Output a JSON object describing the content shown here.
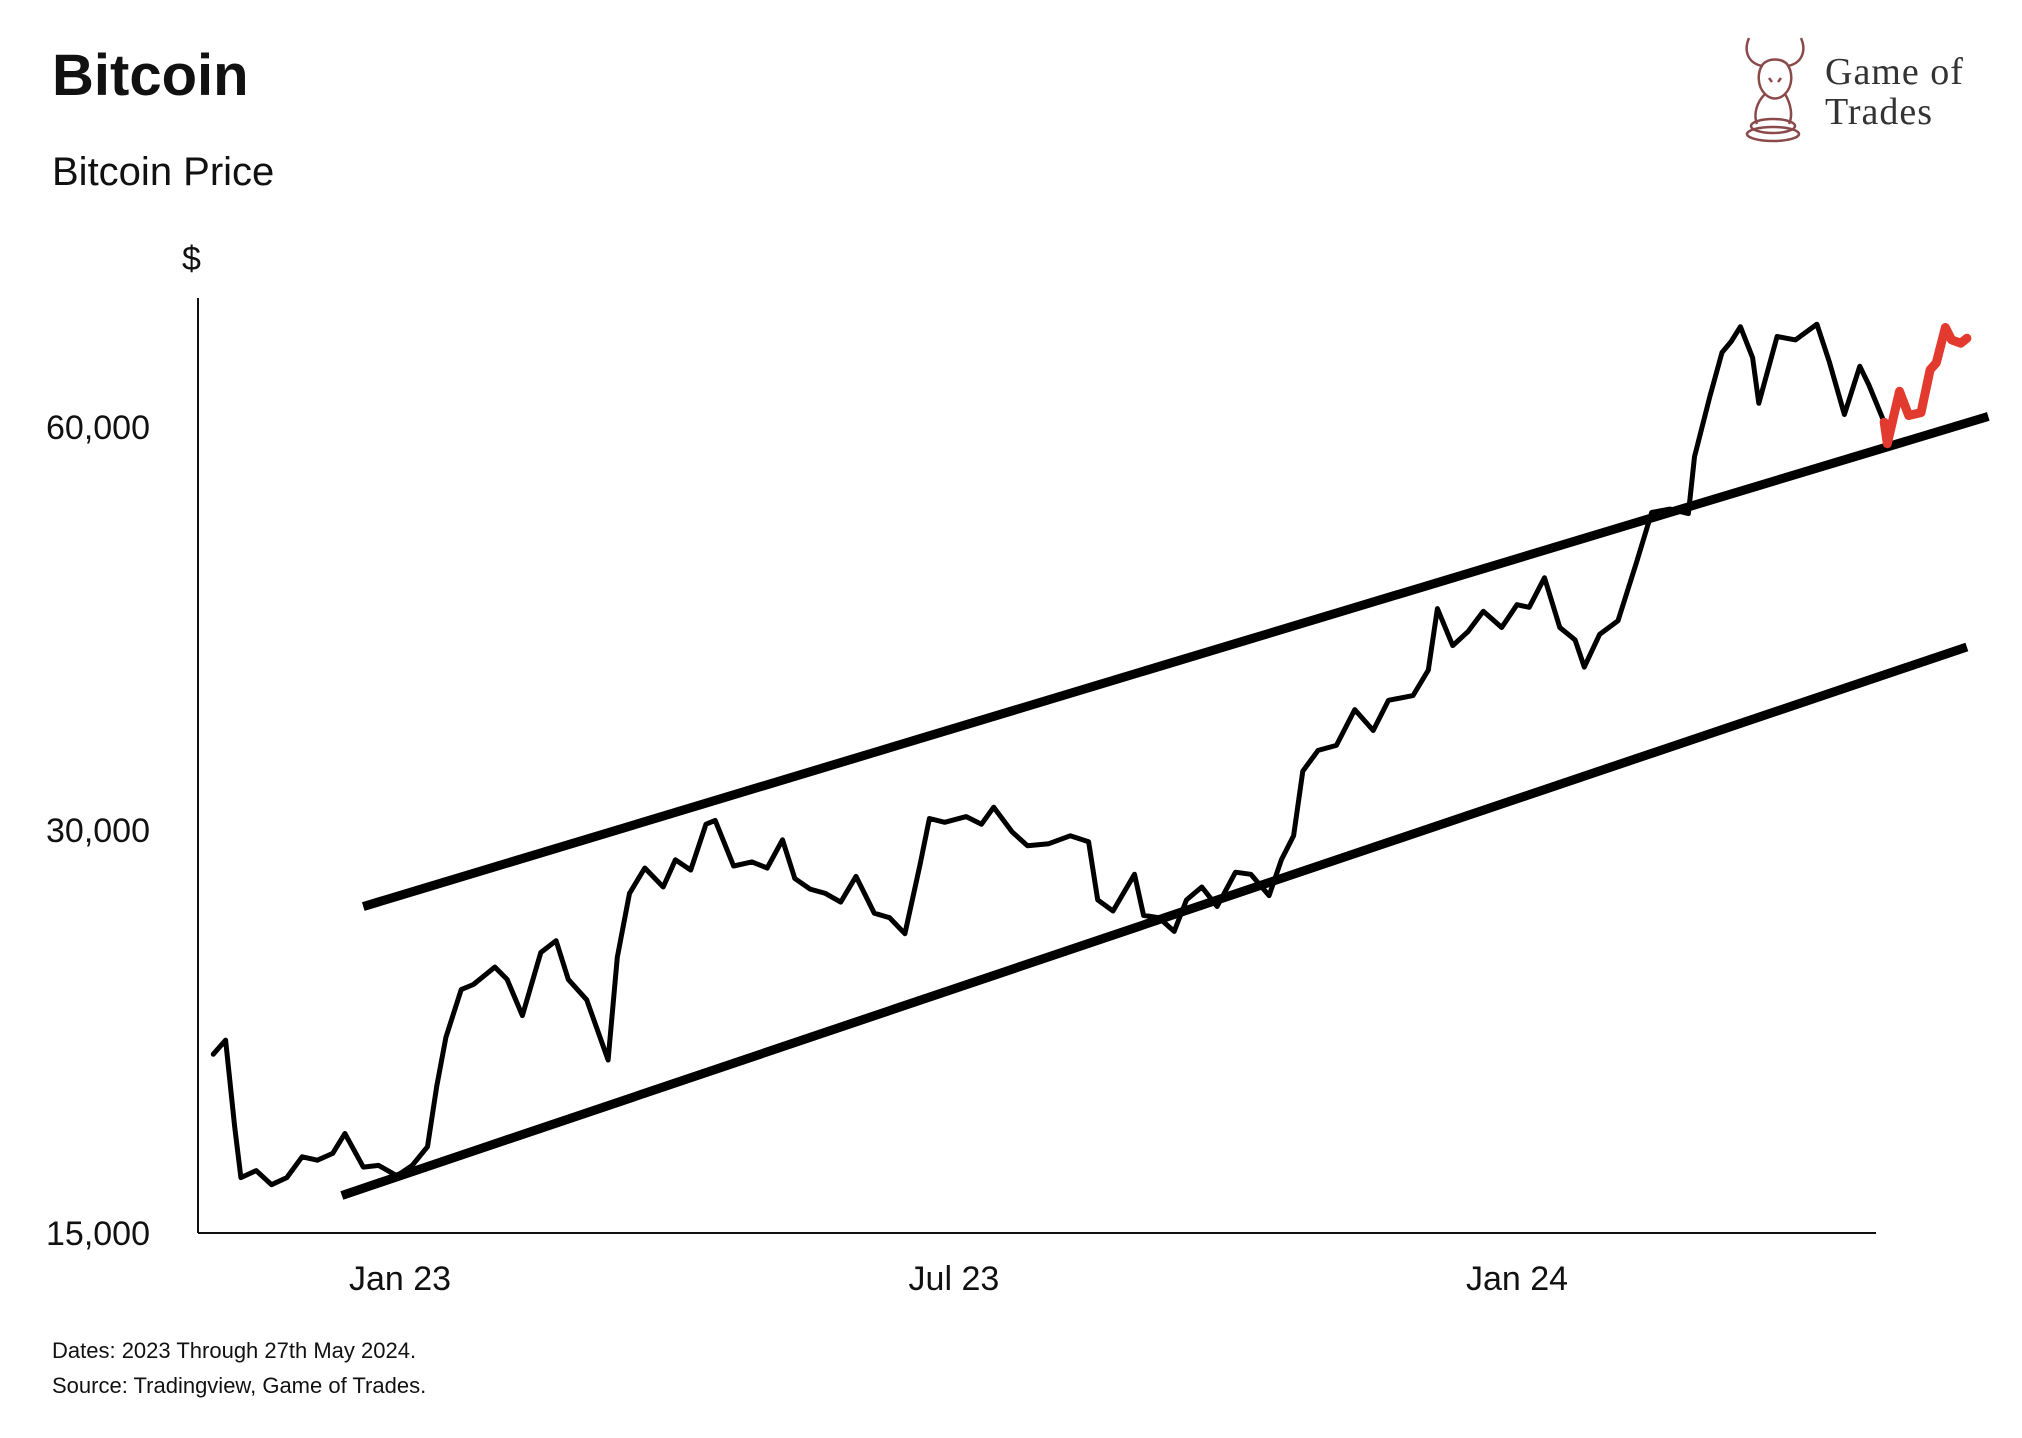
{
  "header": {
    "title": "Bitcoin",
    "subtitle": "Bitcoin Price"
  },
  "logo": {
    "line1": "Game of",
    "line2": "Trades",
    "icon": "bull-knight-icon",
    "color": "#8b4a4a"
  },
  "footer": {
    "dates": "Dates: 2023 Through 27th May 2024.",
    "source": "Source: Tradingview, Game of Trades."
  },
  "chart_data": {
    "type": "line",
    "ylabel": "$",
    "yticks": [
      15000,
      30000,
      60000
    ],
    "ytick_labels": [
      "15,000",
      "30,000",
      "60,000"
    ],
    "ylim": [
      15000,
      72000
    ],
    "y_scale": "log",
    "xlim": [
      "2022-11-01",
      "2024-05-27"
    ],
    "xticks": [
      "2023-01-01",
      "2023-07-01",
      "2024-01-01"
    ],
    "xtick_labels": [
      "Jan 23",
      "Jul 23",
      "Jan 24"
    ],
    "grid": false,
    "colors": {
      "price": "#000000",
      "recent": "#e23a2e",
      "channel": "#000000"
    },
    "series": [
      {
        "color": "#000000",
        "points": [
          [
            "2022-11-01",
            20400
          ],
          [
            "2022-11-05",
            20900
          ],
          [
            "2022-11-08",
            18000
          ],
          [
            "2022-11-10",
            16500
          ],
          [
            "2022-11-15",
            16700
          ],
          [
            "2022-11-20",
            16300
          ],
          [
            "2022-11-25",
            16500
          ],
          [
            "2022-11-30",
            17100
          ],
          [
            "2022-12-05",
            17000
          ],
          [
            "2022-12-10",
            17200
          ],
          [
            "2022-12-14",
            17800
          ],
          [
            "2022-12-20",
            16800
          ],
          [
            "2022-12-25",
            16850
          ],
          [
            "2022-12-31",
            16550
          ],
          [
            "2023-01-05",
            16850
          ],
          [
            "2023-01-10",
            17400
          ],
          [
            "2023-01-13",
            19300
          ],
          [
            "2023-01-16",
            21000
          ],
          [
            "2023-01-21",
            22800
          ],
          [
            "2023-01-25",
            23000
          ],
          [
            "2023-02-01",
            23700
          ],
          [
            "2023-02-05",
            23200
          ],
          [
            "2023-02-10",
            21800
          ],
          [
            "2023-02-16",
            24300
          ],
          [
            "2023-02-21",
            24800
          ],
          [
            "2023-02-25",
            23200
          ],
          [
            "2023-03-03",
            22400
          ],
          [
            "2023-03-10",
            20200
          ],
          [
            "2023-03-13",
            24100
          ],
          [
            "2023-03-17",
            26900
          ],
          [
            "2023-03-22",
            28100
          ],
          [
            "2023-03-28",
            27200
          ],
          [
            "2023-04-01",
            28500
          ],
          [
            "2023-04-06",
            28000
          ],
          [
            "2023-04-11",
            30300
          ],
          [
            "2023-04-14",
            30500
          ],
          [
            "2023-04-20",
            28200
          ],
          [
            "2023-04-26",
            28400
          ],
          [
            "2023-05-01",
            28100
          ],
          [
            "2023-05-06",
            29500
          ],
          [
            "2023-05-10",
            27600
          ],
          [
            "2023-05-15",
            27100
          ],
          [
            "2023-05-20",
            26900
          ],
          [
            "2023-05-25",
            26500
          ],
          [
            "2023-05-30",
            27700
          ],
          [
            "2023-06-05",
            26000
          ],
          [
            "2023-06-10",
            25800
          ],
          [
            "2023-06-15",
            25100
          ],
          [
            "2023-06-20",
            28300
          ],
          [
            "2023-06-23",
            30600
          ],
          [
            "2023-06-28",
            30400
          ],
          [
            "2023-07-05",
            30700
          ],
          [
            "2023-07-10",
            30300
          ],
          [
            "2023-07-14",
            31200
          ],
          [
            "2023-07-20",
            29900
          ],
          [
            "2023-07-25",
            29200
          ],
          [
            "2023-08-01",
            29300
          ],
          [
            "2023-08-08",
            29700
          ],
          [
            "2023-08-14",
            29400
          ],
          [
            "2023-08-17",
            26600
          ],
          [
            "2023-08-22",
            26100
          ],
          [
            "2023-08-29",
            27800
          ],
          [
            "2023-09-01",
            25900
          ],
          [
            "2023-09-06",
            25800
          ],
          [
            "2023-09-11",
            25200
          ],
          [
            "2023-09-15",
            26600
          ],
          [
            "2023-09-20",
            27200
          ],
          [
            "2023-09-25",
            26300
          ],
          [
            "2023-10-01",
            27900
          ],
          [
            "2023-10-06",
            27800
          ],
          [
            "2023-10-12",
            26800
          ],
          [
            "2023-10-16",
            28500
          ],
          [
            "2023-10-20",
            29700
          ],
          [
            "2023-10-23",
            33200
          ],
          [
            "2023-10-28",
            34400
          ],
          [
            "2023-11-03",
            34700
          ],
          [
            "2023-11-09",
            36900
          ],
          [
            "2023-11-15",
            35600
          ],
          [
            "2023-11-20",
            37500
          ],
          [
            "2023-11-28",
            37800
          ],
          [
            "2023-12-03",
            39500
          ],
          [
            "2023-12-06",
            43900
          ],
          [
            "2023-12-11",
            41200
          ],
          [
            "2023-12-16",
            42200
          ],
          [
            "2023-12-21",
            43700
          ],
          [
            "2023-12-27",
            42500
          ],
          [
            "2024-01-01",
            44200
          ],
          [
            "2024-01-05",
            44000
          ],
          [
            "2024-01-10",
            46300
          ],
          [
            "2024-01-15",
            42500
          ],
          [
            "2024-01-20",
            41600
          ],
          [
            "2024-01-23",
            39700
          ],
          [
            "2024-01-28",
            42000
          ],
          [
            "2024-02-03",
            43000
          ],
          [
            "2024-02-09",
            47500
          ],
          [
            "2024-02-14",
            51800
          ],
          [
            "2024-02-20",
            52100
          ],
          [
            "2024-02-26",
            51700
          ],
          [
            "2024-02-28",
            57000
          ],
          [
            "2024-03-04",
            63200
          ],
          [
            "2024-03-08",
            68200
          ],
          [
            "2024-03-11",
            69500
          ],
          [
            "2024-03-14",
            71300
          ],
          [
            "2024-03-18",
            67600
          ],
          [
            "2024-03-20",
            62500
          ],
          [
            "2024-03-26",
            70100
          ],
          [
            "2024-04-01",
            69700
          ],
          [
            "2024-04-08",
            71600
          ],
          [
            "2024-04-12",
            67200
          ],
          [
            "2024-04-17",
            61300
          ],
          [
            "2024-04-22",
            66600
          ],
          [
            "2024-04-25",
            64500
          ],
          [
            "2024-04-30",
            60500
          ]
        ]
      },
      {
        "color": "#e23a2e",
        "points": [
          [
            "2024-04-30",
            60500
          ],
          [
            "2024-05-01",
            58300
          ],
          [
            "2024-05-03",
            61000
          ],
          [
            "2024-05-05",
            63800
          ],
          [
            "2024-05-08",
            61200
          ],
          [
            "2024-05-12",
            61500
          ],
          [
            "2024-05-15",
            66200
          ],
          [
            "2024-05-17",
            67000
          ],
          [
            "2024-05-20",
            71200
          ],
          [
            "2024-05-22",
            69700
          ],
          [
            "2024-05-25",
            69300
          ],
          [
            "2024-05-27",
            69900
          ]
        ]
      }
    ],
    "channel_lines": [
      {
        "from": [
          "2022-12-20",
          26300
        ],
        "to": [
          "2024-06-03",
          61100
        ]
      },
      {
        "from": [
          "2022-12-13",
          16000
        ],
        "to": [
          "2024-05-27",
          41100
        ]
      }
    ]
  }
}
